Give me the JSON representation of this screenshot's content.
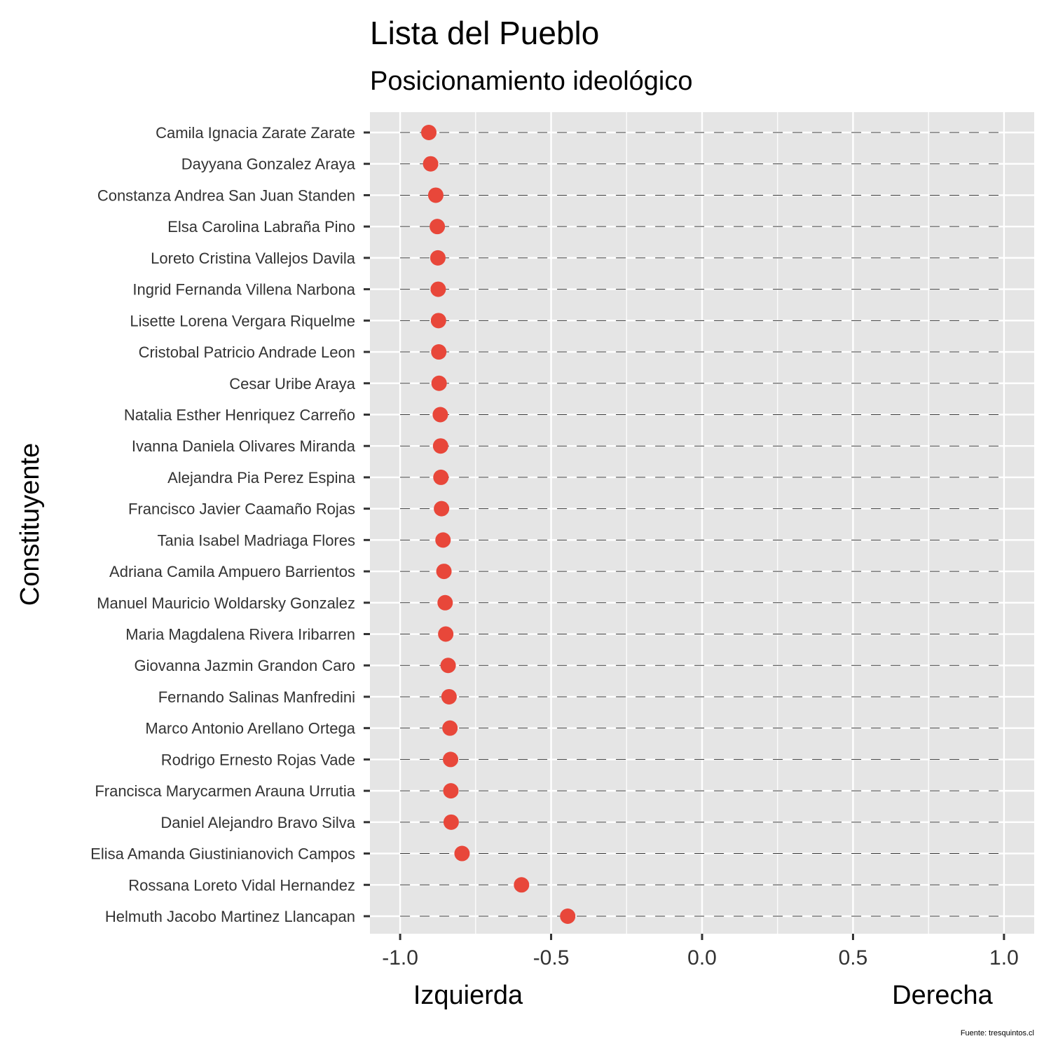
{
  "chart_data": {
    "type": "scatter",
    "title": "Lista del Pueblo",
    "subtitle": "Posicionamiento ideológico",
    "ylabel": "Constituyente",
    "xlabel_left": "Izquierda",
    "xlabel_right": "Derecha",
    "source": "Fuente: tresquintos.cl",
    "xlim": [
      -1.1,
      1.1
    ],
    "xticks": [
      -1.0,
      -0.5,
      0.0,
      0.5,
      1.0
    ],
    "xtick_labels": [
      "-1.0",
      "-0.5",
      "0.0",
      "0.5",
      "1.0"
    ],
    "grid": true,
    "point_color": "#E8473A",
    "panel_color": "#E5E5E5",
    "categories": [
      "Camila Ignacia Zarate Zarate",
      "Dayyana Gonzalez Araya",
      "Constanza Andrea San Juan Standen",
      "Elsa Carolina Labraña Pino",
      "Loreto Cristina Vallejos Davila",
      "Ingrid Fernanda Villena Narbona",
      "Lisette Lorena Vergara Riquelme",
      "Cristobal Patricio Andrade Leon",
      "Cesar Uribe Araya",
      "Natalia Esther Henriquez Carreño",
      "Ivanna Daniela Olivares Miranda",
      "Alejandra Pia Perez Espina",
      "Francisco Javier Caamaño Rojas",
      "Tania Isabel Madriaga Flores",
      "Adriana Camila Ampuero Barrientos",
      "Manuel Mauricio Woldarsky Gonzalez",
      "Maria Magdalena Rivera Iribarren",
      "Giovanna Jazmin Grandon Caro",
      "Fernando Salinas Manfredini",
      "Marco Antonio Arellano Ortega",
      "Rodrigo Ernesto Rojas Vade",
      "Francisca Marycarmen Arauna Urrutia",
      "Daniel Alejandro Bravo Silva",
      "Elisa Amanda Giustinianovich Campos",
      "Rossana Loreto Vidal Hernandez",
      "Helmuth Jacobo Martinez Llancapan"
    ],
    "values": [
      -0.905,
      -0.899,
      -0.882,
      -0.877,
      -0.875,
      -0.874,
      -0.873,
      -0.872,
      -0.871,
      -0.867,
      -0.866,
      -0.865,
      -0.863,
      -0.858,
      -0.855,
      -0.851,
      -0.849,
      -0.841,
      -0.838,
      -0.835,
      -0.833,
      -0.832,
      -0.831,
      -0.795,
      -0.598,
      -0.445
    ]
  }
}
